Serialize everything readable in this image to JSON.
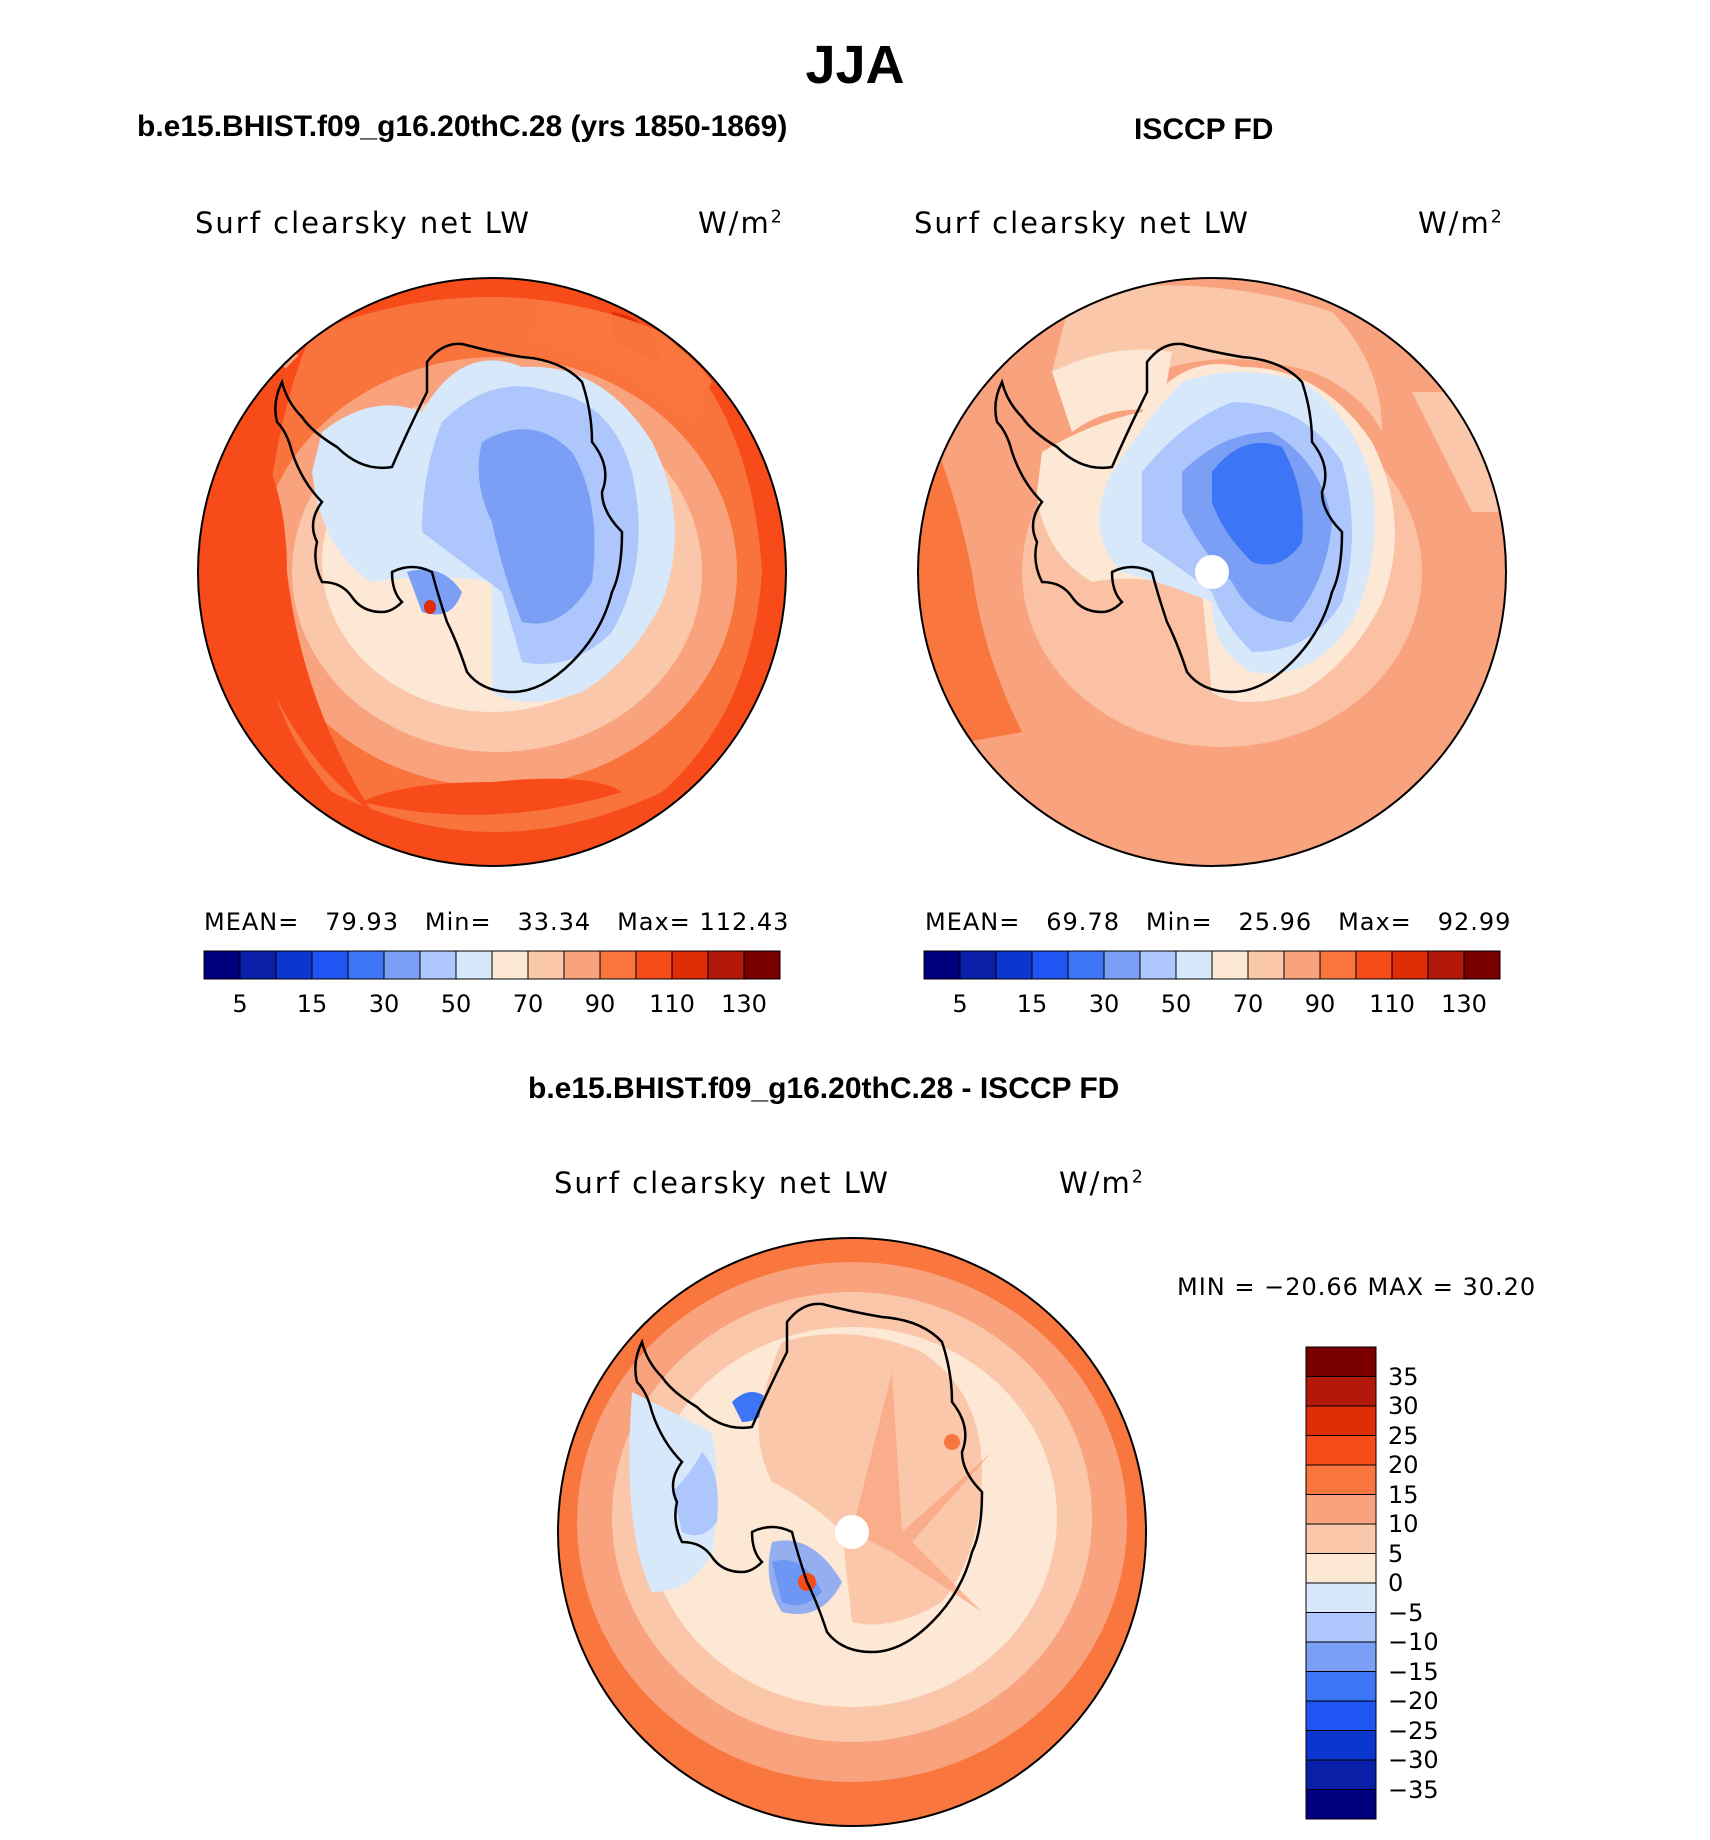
{
  "figure": {
    "title": "JJA"
  },
  "panels": [
    {
      "id": "model",
      "title": "b.e15.BHIST.f09_g16.20thC.28 (yrs 1850-1869)",
      "variable": "Surf clearsky net LW",
      "units": "W/m",
      "units_exp": "2",
      "stats": {
        "mean_label": "MEAN=",
        "mean": "79.93",
        "min_label": "Min=",
        "min": "33.34",
        "max_label": "Max=",
        "max": "112.43"
      },
      "has_pole_hole": false
    },
    {
      "id": "obs",
      "title": "ISCCP FD",
      "variable": "Surf clearsky net LW",
      "units": "W/m",
      "units_exp": "2",
      "stats": {
        "mean_label": "MEAN=",
        "mean": "69.78",
        "min_label": "Min=",
        "min": "25.96",
        "max_label": "Max=",
        "max": "92.99"
      },
      "has_pole_hole": true
    }
  ],
  "diff_panel": {
    "title": "b.e15.BHIST.f09_g16.20thC.28 - ISCCP FD",
    "variable": "Surf clearsky net LW",
    "units": "W/m",
    "units_exp": "2",
    "stats_text": "MIN = −20.66 MAX =   30.20"
  },
  "colorbar_abs": {
    "colors": [
      "#00007f",
      "#0a1fa8",
      "#0c36d0",
      "#1f55f2",
      "#3c75f5",
      "#7a9ff5",
      "#adc6fb",
      "#d8e8fb",
      "#fde8d6",
      "#fbc7aa",
      "#f9a27e",
      "#f9763f",
      "#f74c1a",
      "#df2d08",
      "#b3190a",
      "#7a0000"
    ],
    "tick_labels": [
      "5",
      "15",
      "30",
      "50",
      "70",
      "90",
      "110",
      "130"
    ]
  },
  "colorbar_diff": {
    "colors": [
      "#7a0000",
      "#b3190a",
      "#df2d08",
      "#f74c1a",
      "#f9763f",
      "#f9a27e",
      "#fbc7aa",
      "#fde8d6",
      "#d8e8fb",
      "#adc6fb",
      "#7a9ff5",
      "#3c75f5",
      "#1f55f2",
      "#0c36d0",
      "#0a1fa8",
      "#00007f"
    ],
    "tick_labels": [
      "35",
      "30",
      "25",
      "20",
      "15",
      "10",
      "5",
      "0",
      "−5",
      "−10",
      "−15",
      "−20",
      "−25",
      "−30",
      "−35"
    ]
  },
  "map": {
    "projection": "south polar stereographic",
    "region": "Antarctica",
    "coastline_color": "#000000"
  }
}
